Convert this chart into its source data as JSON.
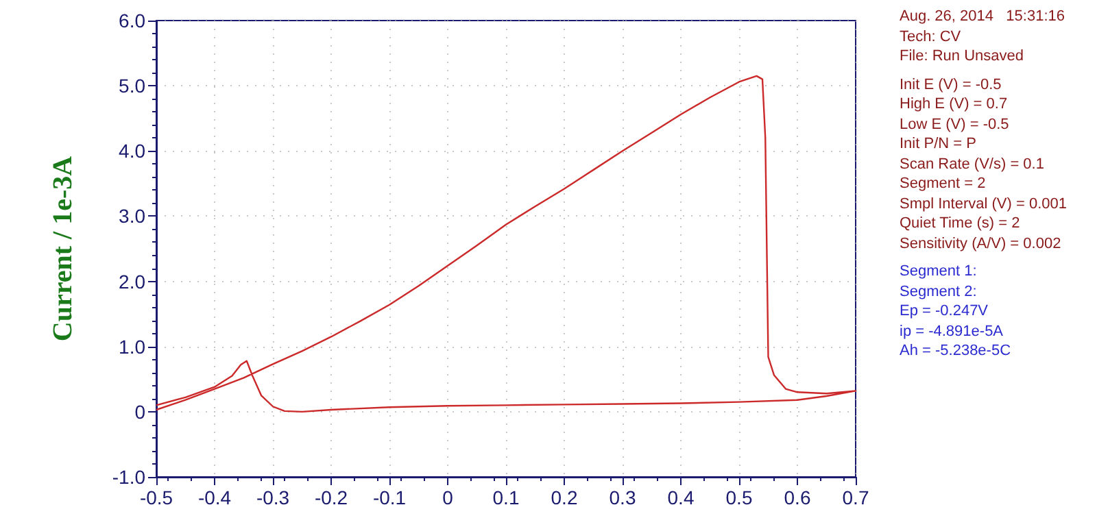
{
  "chart_data": {
    "type": "line",
    "ylabel": "Current / 1e-3A",
    "xlim": [
      -0.5,
      0.7
    ],
    "xticks": [
      -0.5,
      -0.4,
      -0.3,
      -0.2,
      -0.1,
      0,
      0.1,
      0.2,
      0.3,
      0.4,
      0.5,
      0.6,
      0.7
    ],
    "ylim": [
      -1,
      6
    ],
    "yticks": [
      {
        "value": -1,
        "label": "-1.0"
      },
      0,
      {
        "value": 1,
        "label": "1.0"
      },
      {
        "value": 2,
        "label": "2.0"
      },
      {
        "value": 3,
        "label": "3.0"
      },
      {
        "value": 4,
        "label": "4.0"
      },
      {
        "value": 5,
        "label": "5.0"
      },
      {
        "value": 6,
        "label": "6.0"
      }
    ],
    "grid": true,
    "marker": "none",
    "line_style": "solid",
    "series": [
      {
        "color": "#cc2a2a",
        "x": [
          -0.5,
          -0.45,
          -0.4,
          -0.35,
          -0.3,
          -0.25,
          -0.2,
          -0.15,
          -0.1,
          -0.05,
          0,
          0.05,
          0.1,
          0.15,
          0.2,
          0.25,
          0.3,
          0.35,
          0.4,
          0.45,
          0.5,
          0.53,
          0.54,
          0.545,
          0.55,
          0.56,
          0.58,
          0.6,
          0.65,
          0.7,
          0.65,
          0.6,
          0.5,
          0.4,
          0.3,
          0.2,
          0.1,
          0,
          -0.1,
          -0.2,
          -0.25,
          -0.28,
          -0.3,
          -0.32,
          -0.335,
          -0.345,
          -0.355,
          -0.37,
          -0.4,
          -0.45,
          -0.5
        ],
        "values": [
          0.03,
          0.18,
          0.35,
          0.52,
          0.73,
          0.93,
          1.15,
          1.39,
          1.64,
          1.93,
          2.24,
          2.55,
          2.87,
          3.15,
          3.42,
          3.71,
          4.0,
          4.28,
          4.56,
          4.82,
          5.06,
          5.15,
          5.1,
          4.2,
          0.84,
          0.56,
          0.35,
          0.3,
          0.28,
          0.32,
          0.24,
          0.18,
          0.15,
          0.13,
          0.12,
          0.11,
          0.1,
          0.09,
          0.07,
          0.03,
          0.0,
          0.01,
          0.08,
          0.25,
          0.55,
          0.78,
          0.72,
          0.55,
          0.38,
          0.22,
          0.1
        ]
      }
    ],
    "annotations": [
      "Aug. 26, 2014   15:31:16",
      "Tech: CV",
      "File: Run Unsaved",
      "Init E (V) = -0.5",
      "High E (V) = 0.7",
      "Low E (V) = -0.5",
      "Init P/N = P",
      "Scan Rate (V/s) = 0.1",
      "Segment = 2",
      "Smpl Interval (V) = 0.001",
      "Quiet Time (s) = 2",
      "Sensitivity (A/V) = 0.002",
      "Segment 1:",
      "Segment 2:",
      "Ep = -0.247V",
      "ip = -4.891e-5A",
      "Ah = -5.238e-5C"
    ]
  }
}
